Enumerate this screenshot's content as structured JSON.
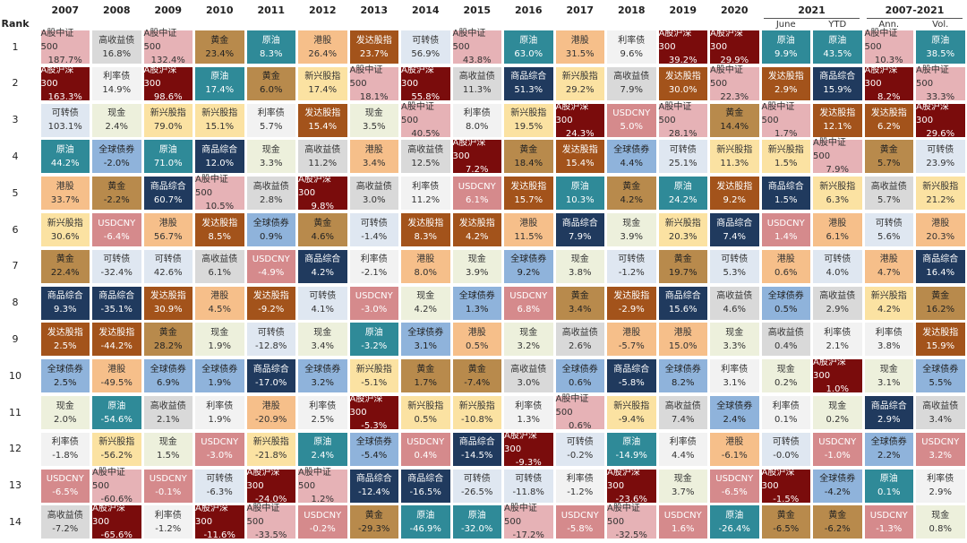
{
  "rank_label": "Rank",
  "ranks": [
    1,
    2,
    3,
    4,
    5,
    6,
    7,
    8,
    9,
    10,
    11,
    12,
    13,
    14
  ],
  "header": [
    {
      "label": "2007"
    },
    {
      "label": "2008"
    },
    {
      "label": "2009"
    },
    {
      "label": "2010"
    },
    {
      "label": "2011"
    },
    {
      "label": "2012"
    },
    {
      "label": "2013"
    },
    {
      "label": "2014"
    },
    {
      "label": "2015"
    },
    {
      "label": "2016"
    },
    {
      "label": "2017"
    },
    {
      "label": "2018"
    },
    {
      "label": "2019"
    },
    {
      "label": "2020"
    },
    {
      "label": "2021",
      "subs": [
        "June",
        "YTD"
      ]
    },
    {
      "label": "2007-2021",
      "subs": [
        "Ann.",
        "Vol."
      ]
    }
  ],
  "colors": {
    "A股中证500": [
      "#e6b2b6",
      "#333"
    ],
    "A股沪深300": [
      "#7a0c0c",
      "#fff"
    ],
    "高收益债": [
      "#d9d9d9",
      "#333"
    ],
    "可转债": [
      "#dfe7f1",
      "#333"
    ],
    "原油": [
      "#2f8a98",
      "#fff"
    ],
    "黄金": [
      "#b88a4c",
      "#222"
    ],
    "港股": [
      "#f6bf8a",
      "#333"
    ],
    "发达股指": [
      "#a3531b",
      "#fff"
    ],
    "利率债": [
      "#f2f2f2",
      "#333"
    ],
    "现金": [
      "#edf0dc",
      "#333"
    ],
    "全球债券": [
      "#8fb3db",
      "#222"
    ],
    "商品综合": [
      "#203a5e",
      "#fff"
    ],
    "新兴股指": [
      "#fbe2a2",
      "#333"
    ],
    "USDCNY": [
      "#d58a8c",
      "#fff"
    ]
  },
  "columns": [
    [
      [
        "A股中证500",
        "187.7%"
      ],
      [
        "A股沪深300",
        "163.3%"
      ],
      [
        "可转债",
        "103.1%"
      ],
      [
        "原油",
        "44.2%"
      ],
      [
        "港股",
        "33.7%"
      ],
      [
        "新兴股指",
        "30.6%"
      ],
      [
        "黄金",
        "22.4%"
      ],
      [
        "商品综合",
        "9.3%"
      ],
      [
        "发达股指",
        "2.5%"
      ],
      [
        "全球债券",
        "2.5%"
      ],
      [
        "现金",
        "2.0%"
      ],
      [
        "利率债",
        "-1.8%"
      ],
      [
        "USDCNY",
        "-6.5%"
      ],
      [
        "高收益债",
        "-7.2%"
      ]
    ],
    [
      [
        "高收益债",
        "16.8%"
      ],
      [
        "利率债",
        "14.9%"
      ],
      [
        "现金",
        "2.4%"
      ],
      [
        "全球债券",
        "-2.0%"
      ],
      [
        "黄金",
        "-2.2%"
      ],
      [
        "USDCNY",
        "-6.4%"
      ],
      [
        "可转债",
        "-32.4%"
      ],
      [
        "商品综合",
        "-35.1%"
      ],
      [
        "发达股指",
        "-44.2%"
      ],
      [
        "港股",
        "-49.5%"
      ],
      [
        "原油",
        "-54.6%"
      ],
      [
        "新兴股指",
        "-56.2%"
      ],
      [
        "A股中证500",
        "-60.6%"
      ],
      [
        "A股沪深300",
        "-65.6%"
      ]
    ],
    [
      [
        "A股中证500",
        "132.4%"
      ],
      [
        "A股沪深300",
        "98.6%"
      ],
      [
        "新兴股指",
        "79.0%"
      ],
      [
        "原油",
        "71.0%"
      ],
      [
        "商品综合",
        "60.7%"
      ],
      [
        "港股",
        "56.7%"
      ],
      [
        "可转债",
        "42.6%"
      ],
      [
        "发达股指",
        "30.9%"
      ],
      [
        "黄金",
        "28.2%"
      ],
      [
        "全球债券",
        "6.9%"
      ],
      [
        "高收益债",
        "2.1%"
      ],
      [
        "现金",
        "1.5%"
      ],
      [
        "USDCNY",
        "-0.1%"
      ],
      [
        "利率债",
        "-1.2%"
      ]
    ],
    [
      [
        "黄金",
        "23.4%"
      ],
      [
        "原油",
        "17.4%"
      ],
      [
        "新兴股指",
        "15.1%"
      ],
      [
        "商品综合",
        "12.0%"
      ],
      [
        "A股中证500",
        "10.5%"
      ],
      [
        "发达股指",
        "8.5%"
      ],
      [
        "高收益债",
        "6.1%"
      ],
      [
        "港股",
        "4.5%"
      ],
      [
        "现金",
        "1.9%"
      ],
      [
        "全球债券",
        "1.9%"
      ],
      [
        "利率债",
        "1.9%"
      ],
      [
        "USDCNY",
        "-3.0%"
      ],
      [
        "可转债",
        "-6.3%"
      ],
      [
        "A股沪深300",
        "-11.6%"
      ]
    ],
    [
      [
        "原油",
        "8.3%"
      ],
      [
        "黄金",
        "6.0%"
      ],
      [
        "利率债",
        "5.7%"
      ],
      [
        "现金",
        "3.3%"
      ],
      [
        "高收益债",
        "2.8%"
      ],
      [
        "全球债券",
        "0.9%"
      ],
      [
        "USDCNY",
        "-4.9%"
      ],
      [
        "发达股指",
        "-9.2%"
      ],
      [
        "可转债",
        "-12.8%"
      ],
      [
        "商品综合",
        "-17.0%"
      ],
      [
        "港股",
        "-20.9%"
      ],
      [
        "新兴股指",
        "-21.8%"
      ],
      [
        "A股沪深300",
        "-24.0%"
      ],
      [
        "A股中证500",
        "-33.5%"
      ]
    ],
    [
      [
        "港股",
        "26.4%"
      ],
      [
        "新兴股指",
        "17.4%"
      ],
      [
        "发达股指",
        "15.4%"
      ],
      [
        "高收益债",
        "11.2%"
      ],
      [
        "A股沪深300",
        "9.8%"
      ],
      [
        "黄金",
        "4.6%"
      ],
      [
        "商品综合",
        "4.2%"
      ],
      [
        "可转债",
        "4.1%"
      ],
      [
        "现金",
        "3.4%"
      ],
      [
        "全球债券",
        "3.2%"
      ],
      [
        "利率债",
        "2.5%"
      ],
      [
        "原油",
        "2.4%"
      ],
      [
        "A股中证500",
        "1.2%"
      ],
      [
        "USDCNY",
        "-0.2%"
      ]
    ],
    [
      [
        "发达股指",
        "23.7%"
      ],
      [
        "A股中证500",
        "18.1%"
      ],
      [
        "现金",
        "3.5%"
      ],
      [
        "港股",
        "3.4%"
      ],
      [
        "高收益债",
        "3.0%"
      ],
      [
        "可转债",
        "-1.4%"
      ],
      [
        "利率债",
        "-2.1%"
      ],
      [
        "USDCNY",
        "-3.0%"
      ],
      [
        "原油",
        "-3.2%"
      ],
      [
        "新兴股指",
        "-5.1%"
      ],
      [
        "A股沪深300",
        "-5.3%"
      ],
      [
        "全球债券",
        "-5.4%"
      ],
      [
        "商品综合",
        "-12.4%"
      ],
      [
        "黄金",
        "-29.3%"
      ]
    ],
    [
      [
        "可转债",
        "56.9%"
      ],
      [
        "A股沪深300",
        "55.8%"
      ],
      [
        "A股中证500",
        "40.5%"
      ],
      [
        "高收益债",
        "12.5%"
      ],
      [
        "利率债",
        "11.2%"
      ],
      [
        "发达股指",
        "8.3%"
      ],
      [
        "港股",
        "8.0%"
      ],
      [
        "现金",
        "4.2%"
      ],
      [
        "全球债券",
        "3.1%"
      ],
      [
        "黄金",
        "1.7%"
      ],
      [
        "新兴股指",
        "0.5%"
      ],
      [
        "USDCNY",
        "0.4%"
      ],
      [
        "商品综合",
        "-16.5%"
      ],
      [
        "原油",
        "-46.9%"
      ]
    ],
    [
      [
        "A股中证500",
        "43.8%"
      ],
      [
        "高收益债",
        "11.3%"
      ],
      [
        "利率债",
        "8.0%"
      ],
      [
        "A股沪深300",
        "7.2%"
      ],
      [
        "USDCNY",
        "6.1%"
      ],
      [
        "发达股指",
        "4.2%"
      ],
      [
        "现金",
        "3.9%"
      ],
      [
        "全球债券",
        "1.3%"
      ],
      [
        "港股",
        "0.5%"
      ],
      [
        "黄金",
        "-7.4%"
      ],
      [
        "新兴股指",
        "-10.8%"
      ],
      [
        "商品综合",
        "-14.5%"
      ],
      [
        "可转债",
        "-26.5%"
      ],
      [
        "原油",
        "-32.0%"
      ]
    ],
    [
      [
        "原油",
        "63.0%"
      ],
      [
        "商品综合",
        "51.3%"
      ],
      [
        "新兴股指",
        "19.5%"
      ],
      [
        "黄金",
        "18.4%"
      ],
      [
        "发达股指",
        "15.7%"
      ],
      [
        "港股",
        "11.5%"
      ],
      [
        "全球债券",
        "9.2%"
      ],
      [
        "USDCNY",
        "6.8%"
      ],
      [
        "现金",
        "3.2%"
      ],
      [
        "高收益债",
        "3.0%"
      ],
      [
        "利率债",
        "1.3%"
      ],
      [
        "A股沪深300",
        "-9.3%"
      ],
      [
        "可转债",
        "-11.8%"
      ],
      [
        "A股中证500",
        "-17.2%"
      ]
    ],
    [
      [
        "港股",
        "31.5%"
      ],
      [
        "新兴股指",
        "29.2%"
      ],
      [
        "A股沪深300",
        "24.3%"
      ],
      [
        "发达股指",
        "15.4%"
      ],
      [
        "原油",
        "10.3%"
      ],
      [
        "商品综合",
        "7.9%"
      ],
      [
        "现金",
        "3.8%"
      ],
      [
        "黄金",
        "3.4%"
      ],
      [
        "高收益债",
        "2.6%"
      ],
      [
        "全球债券",
        "0.6%"
      ],
      [
        "A股中证500",
        "0.6%"
      ],
      [
        "可转债",
        "-0.2%"
      ],
      [
        "利率债",
        "-1.2%"
      ],
      [
        "USDCNY",
        "-5.8%"
      ]
    ],
    [
      [
        "利率债",
        "9.6%"
      ],
      [
        "高收益债",
        "7.9%"
      ],
      [
        "USDCNY",
        "5.0%"
      ],
      [
        "全球债券",
        "4.4%"
      ],
      [
        "黄金",
        "4.2%"
      ],
      [
        "现金",
        "3.9%"
      ],
      [
        "可转债",
        "-1.2%"
      ],
      [
        "发达股指",
        "-2.9%"
      ],
      [
        "港股",
        "-5.7%"
      ],
      [
        "商品综合",
        "-5.8%"
      ],
      [
        "新兴股指",
        "-9.4%"
      ],
      [
        "原油",
        "-14.9%"
      ],
      [
        "A股沪深300",
        "-23.6%"
      ],
      [
        "A股中证500",
        "-32.5%"
      ]
    ],
    [
      [
        "A股沪深300",
        "39.2%"
      ],
      [
        "发达股指",
        "30.0%"
      ],
      [
        "A股中证500",
        "28.1%"
      ],
      [
        "可转债",
        "25.1%"
      ],
      [
        "原油",
        "24.2%"
      ],
      [
        "新兴股指",
        "20.3%"
      ],
      [
        "黄金",
        "19.7%"
      ],
      [
        "商品综合",
        "15.6%"
      ],
      [
        "港股",
        "15.0%"
      ],
      [
        "全球债券",
        "8.2%"
      ],
      [
        "高收益债",
        "7.4%"
      ],
      [
        "利率债",
        "4.4%"
      ],
      [
        "现金",
        "3.7%"
      ],
      [
        "USDCNY",
        "1.6%"
      ]
    ],
    [
      [
        "A股沪深300",
        "29.9%"
      ],
      [
        "A股中证500",
        "22.3%"
      ],
      [
        "黄金",
        "14.4%"
      ],
      [
        "新兴股指",
        "11.3%"
      ],
      [
        "发达股指",
        "9.2%"
      ],
      [
        "商品综合",
        "7.4%"
      ],
      [
        "可转债",
        "5.3%"
      ],
      [
        "高收益债",
        "4.6%"
      ],
      [
        "现金",
        "3.3%"
      ],
      [
        "利率债",
        "3.1%"
      ],
      [
        "全球债券",
        "2.4%"
      ],
      [
        "港股",
        "-6.1%"
      ],
      [
        "USDCNY",
        "-6.5%"
      ],
      [
        "原油",
        "-26.4%"
      ]
    ],
    [
      [
        "原油",
        "9.9%"
      ],
      [
        "发达股指",
        "2.9%"
      ],
      [
        "A股中证500",
        "1.7%"
      ],
      [
        "新兴股指",
        "1.5%"
      ],
      [
        "商品综合",
        "1.5%"
      ],
      [
        "USDCNY",
        "1.4%"
      ],
      [
        "港股",
        "0.6%"
      ],
      [
        "全球债券",
        "0.5%"
      ],
      [
        "高收益债",
        "0.4%"
      ],
      [
        "现金",
        "0.2%"
      ],
      [
        "利率债",
        "0.1%"
      ],
      [
        "可转债",
        "-0.0%"
      ],
      [
        "A股沪深300",
        "-1.5%"
      ],
      [
        "黄金",
        "-6.5%"
      ]
    ],
    [
      [
        "原油",
        "43.5%"
      ],
      [
        "商品综合",
        "15.9%"
      ],
      [
        "发达股指",
        "12.1%"
      ],
      [
        "A股中证500",
        "7.9%"
      ],
      [
        "新兴股指",
        "6.3%"
      ],
      [
        "港股",
        "6.1%"
      ],
      [
        "可转债",
        "4.0%"
      ],
      [
        "高收益债",
        "2.9%"
      ],
      [
        "利率债",
        "2.1%"
      ],
      [
        "A股沪深300",
        "1.0%"
      ],
      [
        "现金",
        "0.2%"
      ],
      [
        "USDCNY",
        "-1.0%"
      ],
      [
        "全球债券",
        "-4.2%"
      ],
      [
        "黄金",
        "-6.2%"
      ]
    ],
    [
      [
        "A股中证500",
        "10.3%"
      ],
      [
        "A股沪深300",
        "8.2%"
      ],
      [
        "发达股指",
        "6.2%"
      ],
      [
        "黄金",
        "5.7%"
      ],
      [
        "高收益债",
        "5.7%"
      ],
      [
        "可转债",
        "5.6%"
      ],
      [
        "港股",
        "4.7%"
      ],
      [
        "新兴股指",
        "4.2%"
      ],
      [
        "利率债",
        "3.8%"
      ],
      [
        "现金",
        "3.1%"
      ],
      [
        "商品综合",
        "2.9%"
      ],
      [
        "全球债券",
        "2.2%"
      ],
      [
        "原油",
        "0.1%"
      ],
      [
        "USDCNY",
        "-1.3%"
      ]
    ],
    [
      [
        "原油",
        "38.5%"
      ],
      [
        "A股中证500",
        "33.3%"
      ],
      [
        "A股沪深300",
        "29.6%"
      ],
      [
        "可转债",
        "23.9%"
      ],
      [
        "新兴股指",
        "21.2%"
      ],
      [
        "港股",
        "20.3%"
      ],
      [
        "商品综合",
        "16.4%"
      ],
      [
        "黄金",
        "16.2%"
      ],
      [
        "发达股指",
        "15.9%"
      ],
      [
        "全球债券",
        "5.5%"
      ],
      [
        "高收益债",
        "3.4%"
      ],
      [
        "USDCNY",
        "3.2%"
      ],
      [
        "利率债",
        "2.9%"
      ],
      [
        "现金",
        "0.8%"
      ]
    ]
  ]
}
